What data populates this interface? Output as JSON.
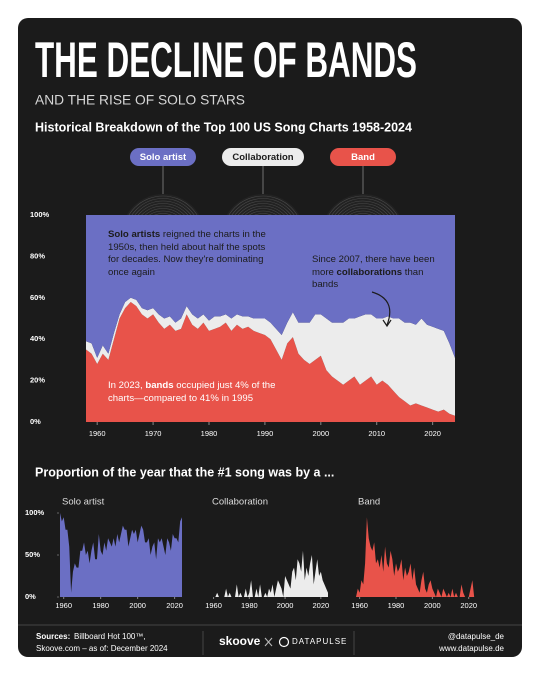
{
  "header": {
    "title": "THE DECLINE OF BANDS",
    "subtitle": "AND THE RISE OF SOLO STARS"
  },
  "chart_data": [
    {
      "type": "stacked_area",
      "title": "Historical Breakdown of the Top 100 US Song Charts 1958-2024",
      "x": [
        1958,
        1959,
        1960,
        1961,
        1962,
        1963,
        1964,
        1965,
        1966,
        1967,
        1968,
        1969,
        1970,
        1971,
        1972,
        1973,
        1974,
        1975,
        1976,
        1977,
        1978,
        1979,
        1980,
        1981,
        1982,
        1983,
        1984,
        1985,
        1986,
        1987,
        1988,
        1989,
        1990,
        1991,
        1992,
        1993,
        1994,
        1995,
        1996,
        1997,
        1998,
        1999,
        2000,
        2001,
        2002,
        2003,
        2004,
        2005,
        2006,
        2007,
        2008,
        2009,
        2010,
        2011,
        2012,
        2013,
        2014,
        2015,
        2016,
        2017,
        2018,
        2019,
        2020,
        2021,
        2022,
        2023,
        2024
      ],
      "series": [
        {
          "name": "Solo artist",
          "color": "#6b6fc4",
          "values": [
            61,
            62,
            69,
            63,
            67,
            57,
            48,
            42,
            40,
            41,
            45,
            46,
            45,
            48,
            50,
            49,
            52,
            50,
            44,
            48,
            50,
            48,
            51,
            49,
            49,
            48,
            50,
            48,
            49,
            49,
            50,
            50,
            50,
            52,
            55,
            58,
            52,
            47,
            52,
            52,
            52,
            48,
            48,
            50,
            52,
            52,
            52,
            50,
            50,
            49,
            48,
            48,
            50,
            50,
            49,
            50,
            50,
            52,
            52,
            53,
            50,
            53,
            54,
            55,
            56,
            62,
            69
          ]
        },
        {
          "name": "Collaboration",
          "color": "#ececec",
          "values": [
            4,
            5,
            3,
            4,
            3,
            3,
            2,
            3,
            2,
            3,
            3,
            4,
            3,
            4,
            5,
            4,
            4,
            5,
            4,
            5,
            5,
            4,
            5,
            6,
            5,
            4,
            6,
            5,
            6,
            5,
            6,
            7,
            8,
            8,
            10,
            12,
            10,
            12,
            15,
            18,
            20,
            22,
            20,
            25,
            26,
            28,
            30,
            30,
            28,
            33,
            32,
            30,
            32,
            30,
            33,
            35,
            38,
            38,
            40,
            38,
            42,
            40,
            40,
            40,
            38,
            34,
            28
          ]
        },
        {
          "name": "Band",
          "color": "#e8534a",
          "values": [
            35,
            33,
            28,
            33,
            30,
            40,
            50,
            55,
            58,
            56,
            52,
            50,
            52,
            48,
            45,
            47,
            44,
            45,
            52,
            47,
            45,
            48,
            44,
            45,
            46,
            48,
            44,
            47,
            45,
            46,
            44,
            43,
            42,
            40,
            35,
            30,
            38,
            41,
            33,
            30,
            28,
            30,
            32,
            25,
            22,
            20,
            18,
            20,
            22,
            18,
            20,
            22,
            18,
            20,
            18,
            15,
            12,
            10,
            8,
            9,
            8,
            7,
            6,
            5,
            6,
            4,
            3
          ]
        }
      ],
      "xlim": [
        1958,
        2024
      ],
      "xticks": [
        1960,
        1970,
        1980,
        1990,
        2000,
        2010,
        2020
      ],
      "ylim": [
        0,
        100
      ],
      "yticks": [
        {
          "value": 0,
          "label": "0%"
        },
        {
          "value": 20,
          "label": "20%"
        },
        {
          "value": 40,
          "label": "40%"
        },
        {
          "value": 60,
          "label": "60%"
        },
        {
          "value": 80,
          "label": "80%"
        },
        {
          "value": 100,
          "label": "100%"
        }
      ],
      "annotations": [
        {
          "parts": [
            {
              "text": "Solo artists",
              "bold": true
            },
            {
              "text": " reigned the charts in the 1950s, then held about half the spots for decades. Now they're dominating once again",
              "bold": false
            }
          ]
        },
        {
          "parts": [
            {
              "text": "Since 2007, there have been more ",
              "bold": false
            },
            {
              "text": "collaborations",
              "bold": true
            },
            {
              "text": " than bands",
              "bold": false
            }
          ]
        },
        {
          "parts": [
            {
              "text": "In 2023, ",
              "bold": false
            },
            {
              "text": "bands",
              "bold": true
            },
            {
              "text": " occupied just 4% of the charts—compared to 41% in 1995",
              "bold": false
            }
          ]
        }
      ]
    },
    {
      "type": "area",
      "section_title": "Proportion of the year that the #1 song was by a ...",
      "title": "Solo artist",
      "color": "#6b6fc4",
      "x": [
        1958,
        1959,
        1960,
        1961,
        1962,
        1963,
        1964,
        1965,
        1966,
        1967,
        1968,
        1969,
        1970,
        1971,
        1972,
        1973,
        1974,
        1975,
        1976,
        1977,
        1978,
        1979,
        1980,
        1981,
        1982,
        1983,
        1984,
        1985,
        1986,
        1987,
        1988,
        1989,
        1990,
        1991,
        1992,
        1993,
        1994,
        1995,
        1996,
        1997,
        1998,
        1999,
        2000,
        2001,
        2002,
        2003,
        2004,
        2005,
        2006,
        2007,
        2008,
        2009,
        2010,
        2011,
        2012,
        2013,
        2014,
        2015,
        2016,
        2017,
        2018,
        2019,
        2020,
        2021,
        2022,
        2023,
        2024
      ],
      "values": [
        100,
        90,
        95,
        80,
        80,
        60,
        5,
        30,
        40,
        35,
        35,
        55,
        55,
        65,
        50,
        55,
        40,
        55,
        65,
        45,
        45,
        75,
        55,
        50,
        65,
        55,
        70,
        65,
        60,
        70,
        60,
        75,
        65,
        75,
        85,
        80,
        80,
        60,
        70,
        80,
        75,
        80,
        65,
        75,
        85,
        80,
        65,
        65,
        70,
        50,
        60,
        65,
        45,
        70,
        65,
        70,
        60,
        50,
        70,
        65,
        55,
        75,
        70,
        70,
        65,
        90,
        95
      ],
      "xlim": [
        1958,
        2024
      ],
      "xticks": [
        1960,
        1980,
        2000,
        2020
      ],
      "ylim": [
        0,
        100
      ],
      "yticks": [
        {
          "value": 0,
          "label": "0%"
        },
        {
          "value": 50,
          "label": "50%"
        },
        {
          "value": 100,
          "label": "100%"
        }
      ]
    },
    {
      "type": "area",
      "title": "Collaboration",
      "color": "#ececec",
      "x": [
        1958,
        1959,
        1960,
        1961,
        1962,
        1963,
        1964,
        1965,
        1966,
        1967,
        1968,
        1969,
        1970,
        1971,
        1972,
        1973,
        1974,
        1975,
        1976,
        1977,
        1978,
        1979,
        1980,
        1981,
        1982,
        1983,
        1984,
        1985,
        1986,
        1987,
        1988,
        1989,
        1990,
        1991,
        1992,
        1993,
        1994,
        1995,
        1996,
        1997,
        1998,
        1999,
        2000,
        2001,
        2002,
        2003,
        2004,
        2005,
        2006,
        2007,
        2008,
        2009,
        2010,
        2011,
        2012,
        2013,
        2014,
        2015,
        2016,
        2017,
        2018,
        2019,
        2020,
        2021,
        2022,
        2023,
        2024
      ],
      "values": [
        0,
        0,
        0,
        0,
        5,
        0,
        0,
        0,
        0,
        10,
        0,
        5,
        0,
        0,
        0,
        15,
        0,
        5,
        0,
        0,
        10,
        0,
        5,
        20,
        0,
        0,
        10,
        0,
        15,
        0,
        0,
        5,
        0,
        10,
        5,
        15,
        0,
        10,
        20,
        15,
        10,
        0,
        25,
        20,
        15,
        10,
        30,
        35,
        20,
        45,
        40,
        30,
        55,
        20,
        35,
        25,
        40,
        50,
        15,
        30,
        45,
        25,
        30,
        20,
        15,
        10,
        5
      ],
      "xlim": [
        1958,
        2024
      ],
      "xticks": [
        1960,
        1980,
        2000,
        2020
      ]
    },
    {
      "type": "area",
      "title": "Band",
      "color": "#e8534a",
      "x": [
        1958,
        1959,
        1960,
        1961,
        1962,
        1963,
        1964,
        1965,
        1966,
        1967,
        1968,
        1969,
        1970,
        1971,
        1972,
        1973,
        1974,
        1975,
        1976,
        1977,
        1978,
        1979,
        1980,
        1981,
        1982,
        1983,
        1984,
        1985,
        1986,
        1987,
        1988,
        1989,
        1990,
        1991,
        1992,
        1993,
        1994,
        1995,
        1996,
        1997,
        1998,
        1999,
        2000,
        2001,
        2002,
        2003,
        2004,
        2005,
        2006,
        2007,
        2008,
        2009,
        2010,
        2011,
        2012,
        2013,
        2014,
        2015,
        2016,
        2017,
        2018,
        2019,
        2020,
        2021,
        2022,
        2023,
        2024
      ],
      "values": [
        0,
        10,
        5,
        20,
        15,
        40,
        95,
        70,
        60,
        55,
        65,
        40,
        45,
        35,
        50,
        30,
        60,
        40,
        35,
        55,
        45,
        25,
        40,
        30,
        35,
        45,
        20,
        35,
        25,
        30,
        40,
        20,
        35,
        15,
        10,
        5,
        20,
        30,
        10,
        5,
        15,
        20,
        10,
        5,
        0,
        10,
        5,
        0,
        10,
        5,
        0,
        5,
        0,
        10,
        0,
        5,
        0,
        0,
        15,
        5,
        0,
        0,
        0,
        10,
        20,
        0,
        0
      ],
      "xlim": [
        1958,
        2024
      ],
      "xticks": [
        1960,
        1980,
        2000,
        2020
      ]
    }
  ],
  "footer": {
    "sources_label": "Sources:",
    "sources_lines": [
      "Billboard Hot 100™,",
      "Skoove.com – as of: December 2024"
    ],
    "brand": "skoove",
    "partner": "DATAPULSE",
    "handle": "@datapulse_de",
    "website": "www.datapulse.de"
  }
}
